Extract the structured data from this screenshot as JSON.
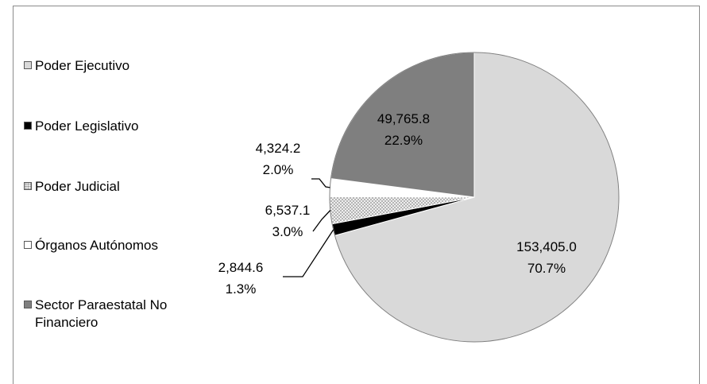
{
  "chart_data": {
    "type": "pie",
    "title": "",
    "legend_position": "left",
    "slices": [
      {
        "name": "Poder Ejecutivo",
        "value": 153405.0,
        "value_label": "153,405.0",
        "percent_label": "70.7%",
        "color": "#d9d9d9",
        "pattern": "solid"
      },
      {
        "name": "Poder Legislativo",
        "value": 2844.6,
        "value_label": "2,844.6",
        "percent_label": "1.3%",
        "color": "#000000",
        "pattern": "solid"
      },
      {
        "name": "Poder Judicial",
        "value": 6537.1,
        "value_label": "6,537.1",
        "percent_label": "3.0%",
        "color": "#d9d9d9",
        "pattern": "dotted"
      },
      {
        "name": "Órganos Autónomos",
        "value": 4324.2,
        "value_label": "4,324.2",
        "percent_label": "2.0%",
        "color": "#ffffff",
        "pattern": "solid"
      },
      {
        "name": "Sector Paraestatal No Financiero",
        "value": 49765.8,
        "value_label": "49,765.8",
        "percent_label": "22.9%",
        "color": "#7f7f7f",
        "pattern": "solid"
      }
    ]
  }
}
